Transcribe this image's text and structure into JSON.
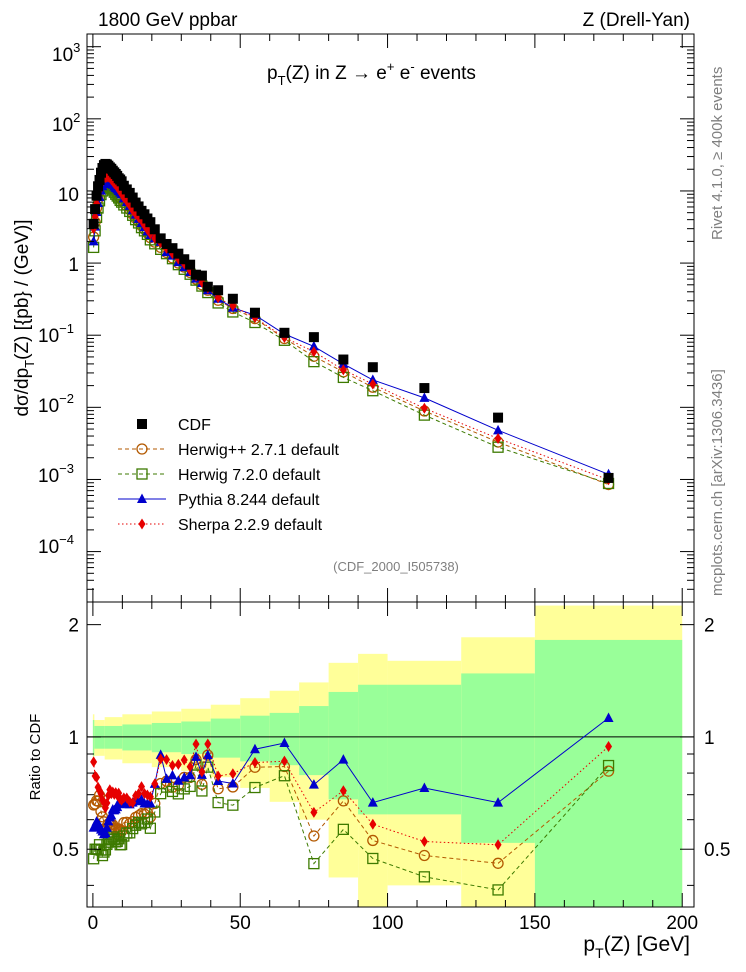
{
  "header": {
    "left": "1800 GeV ppbar",
    "right": "Z (Drell-Yan)"
  },
  "top_panel": {
    "title_parts": [
      "p",
      "T",
      "(Z) in Z  →  e",
      "+",
      " e",
      "-",
      " events"
    ],
    "ylabel": "dσ/dp_T(Z) [{pb} / (GeV)]",
    "ylabel_parts": [
      "dσ/dp",
      "T",
      "(Z) [{pb} / (GeV)]"
    ],
    "watermark": "(CDF_2000_I505738)",
    "y_ticks": [
      {
        "base": "10",
        "exp": "3"
      },
      {
        "base": "10",
        "exp": "2"
      },
      {
        "base": "10",
        "exp": ""
      },
      {
        "base": "1",
        "exp": ""
      },
      {
        "base": "10",
        "exp": "−1"
      },
      {
        "base": "10",
        "exp": "−2"
      },
      {
        "base": "10",
        "exp": "−3"
      },
      {
        "base": "10",
        "exp": "−4"
      }
    ]
  },
  "side_labels": {
    "rivet": "Rivet 4.1.0, ≥ 400k events",
    "mcplots": "mcplots.cern.ch [arXiv:1306.3436]"
  },
  "legend": [
    {
      "label": "CDF",
      "color": "#000000",
      "marker": "square",
      "line": "none"
    },
    {
      "label": "Herwig++ 2.7.1 default",
      "color": "#b35900",
      "marker": "circle-open",
      "line": "dashed"
    },
    {
      "label": "Herwig 7.2.0 default",
      "color": "#3d7a00",
      "marker": "square-open",
      "line": "dashed"
    },
    {
      "label": "Pythia 8.244 default",
      "color": "#0000cc",
      "marker": "triangle",
      "line": "solid"
    },
    {
      "label": "Sherpa 2.2.9 default",
      "color": "#e60000",
      "marker": "diamond",
      "line": "dotted"
    }
  ],
  "ratio_panel": {
    "ylabel": "Ratio to CDF",
    "y_ticks": [
      "0.5",
      "1",
      "2"
    ],
    "y_tick_values": [
      0.5,
      1,
      2
    ]
  },
  "x_axis": {
    "label_parts": [
      "p",
      "T",
      "(Z) [GeV]"
    ],
    "ticks": [
      "0",
      "50",
      "100",
      "150",
      "200"
    ],
    "tick_values": [
      0,
      50,
      100,
      150,
      200
    ]
  },
  "chart_data": {
    "type": "scatter",
    "title": "p_T(Z) in Z → e+ e- events",
    "xlabel": "p_T(Z) [GeV]",
    "ylabel": "dσ/dp_T(Z) [{pb} / (GeV)]",
    "xlim": [
      -2,
      204
    ],
    "ylim": [
      2e-05,
      1500
    ],
    "yscale": "log",
    "ratio_ylim": [
      0.35,
      2.3
    ],
    "ratio_yscale": "log",
    "x": [
      0.25,
      0.75,
      1.25,
      1.75,
      2.25,
      2.75,
      3.25,
      3.75,
      4.25,
      4.75,
      5.25,
      5.75,
      6.25,
      6.75,
      7.25,
      7.75,
      8.25,
      8.75,
      9.25,
      9.75,
      10.5,
      11.5,
      12.5,
      13.5,
      14.5,
      15.5,
      16.5,
      17.5,
      18.5,
      19.5,
      21,
      23,
      25,
      27,
      29,
      31,
      33,
      35,
      37,
      39,
      42.5,
      47.5,
      55,
      65,
      75,
      85,
      95,
      112.5,
      137.5,
      175
    ],
    "series": [
      {
        "name": "CDF",
        "values": [
          3.5,
          5.6,
          8.6,
          11.6,
          14.2,
          17.9,
          20.8,
          22.8,
          23.7,
          23.3,
          22.4,
          21.2,
          20.3,
          19.1,
          18.1,
          17.2,
          16.2,
          15.0,
          14.4,
          13.6,
          11.8,
          10.5,
          9.4,
          8.1,
          6.9,
          6.1,
          5.3,
          4.75,
          4.15,
          3.69,
          2.94,
          2.2,
          1.84,
          1.61,
          1.35,
          1.13,
          0.95,
          0.69,
          0.67,
          0.47,
          0.42,
          0.32,
          0.205,
          0.108,
          0.094,
          0.046,
          0.036,
          0.0185,
          0.0072,
          0.00105
        ]
      },
      {
        "name": "Herwig++ 2.7.1 default",
        "values": [
          2.3,
          3.7,
          5.8,
          7.8,
          9.9,
          11.3,
          12.7,
          13.5,
          13.5,
          13.3,
          13.1,
          12.3,
          11.8,
          11.1,
          10.3,
          9.7,
          8.9,
          8.5,
          8.1,
          7.6,
          6.95,
          6.2,
          5.5,
          4.8,
          4.2,
          3.75,
          3.3,
          2.95,
          2.6,
          2.25,
          1.95,
          1.65,
          1.4,
          1.18,
          1.0,
          0.88,
          0.74,
          0.6,
          0.5,
          0.42,
          0.305,
          0.235,
          0.17,
          0.09,
          0.051,
          0.031,
          0.019,
          0.0089,
          0.0033,
          0.00085
        ]
      },
      {
        "name": "Herwig 7.2.0 default",
        "values": [
          1.65,
          2.8,
          4.3,
          5.8,
          7.3,
          8.9,
          10.0,
          11.2,
          11.8,
          12.0,
          11.7,
          11.3,
          10.8,
          10.3,
          9.6,
          9.0,
          8.5,
          8.0,
          7.4,
          7.0,
          6.4,
          5.8,
          5.2,
          4.6,
          4.0,
          3.6,
          3.1,
          2.8,
          2.5,
          2.1,
          1.85,
          1.55,
          1.35,
          1.15,
          0.95,
          0.82,
          0.7,
          0.58,
          0.48,
          0.39,
          0.28,
          0.21,
          0.15,
          0.085,
          0.043,
          0.026,
          0.017,
          0.0078,
          0.0028,
          0.00088
        ]
      },
      {
        "name": "Pythia 8.244 default",
        "values": [
          2.0,
          3.2,
          5.1,
          6.8,
          8.2,
          10.1,
          11.6,
          12.5,
          13.1,
          13.3,
          13.3,
          12.9,
          12.5,
          12.2,
          11.5,
          11.0,
          10.5,
          10.0,
          9.5,
          9.0,
          7.9,
          7.0,
          6.2,
          5.4,
          4.7,
          4.1,
          3.6,
          3.15,
          2.75,
          2.45,
          2.2,
          1.97,
          1.42,
          1.27,
          1.03,
          0.88,
          0.75,
          0.61,
          0.53,
          0.42,
          0.32,
          0.24,
          0.19,
          0.104,
          0.07,
          0.04,
          0.024,
          0.0135,
          0.0048,
          0.00118
        ]
      },
      {
        "name": "Sherpa 2.2.9 default",
        "values": [
          3.0,
          4.4,
          6.7,
          8.5,
          10.2,
          12.6,
          14.1,
          15.2,
          15.3,
          15.5,
          15.6,
          15.3,
          14.3,
          13.6,
          12.7,
          12.2,
          11.3,
          10.6,
          9.8,
          9.2,
          8.1,
          7.2,
          6.3,
          5.4,
          4.8,
          4.3,
          3.9,
          3.35,
          2.9,
          2.55,
          2.2,
          1.92,
          1.6,
          1.35,
          1.14,
          0.98,
          0.79,
          0.66,
          0.54,
          0.45,
          0.33,
          0.255,
          0.175,
          0.093,
          0.059,
          0.033,
          0.021,
          0.0097,
          0.0037,
          0.00099
        ]
      }
    ],
    "uncertainty_bands": [
      {
        "x_lo": 0,
        "x_hi": 0.5,
        "stat": 0.11,
        "tot": 0.15
      },
      {
        "x_lo": 0.5,
        "x_hi": 4,
        "stat": 0.07,
        "tot": 0.11
      },
      {
        "x_lo": 4,
        "x_hi": 10,
        "stat": 0.07,
        "tot": 0.13
      },
      {
        "x_lo": 10,
        "x_hi": 20,
        "stat": 0.08,
        "tot": 0.15
      },
      {
        "x_lo": 20,
        "x_hi": 30,
        "stat": 0.09,
        "tot": 0.17
      },
      {
        "x_lo": 30,
        "x_hi": 40,
        "stat": 0.1,
        "tot": 0.19
      },
      {
        "x_lo": 40,
        "x_hi": 50,
        "stat": 0.12,
        "tot": 0.22
      },
      {
        "x_lo": 50,
        "x_hi": 60,
        "stat": 0.14,
        "tot": 0.27
      },
      {
        "x_lo": 60,
        "x_hi": 70,
        "stat": 0.16,
        "tot": 0.33
      },
      {
        "x_lo": 70,
        "x_hi": 80,
        "stat": 0.21,
        "tot": 0.4
      },
      {
        "x_lo": 80,
        "x_hi": 90,
        "stat": 0.32,
        "tot": 0.58
      },
      {
        "x_lo": 90,
        "x_hi": 100,
        "stat": 0.38,
        "tot": 0.67
      },
      {
        "x_lo": 100,
        "x_hi": 125,
        "stat": 0.38,
        "tot": 0.6
      },
      {
        "x_lo": 125,
        "x_hi": 150,
        "stat": 0.48,
        "tot": 0.85
      },
      {
        "x_lo": 150,
        "x_hi": 200,
        "stat": 0.82,
        "tot": 1.25
      }
    ],
    "band_colors": {
      "stat": "#99ff99",
      "tot": "#ffff99"
    }
  }
}
